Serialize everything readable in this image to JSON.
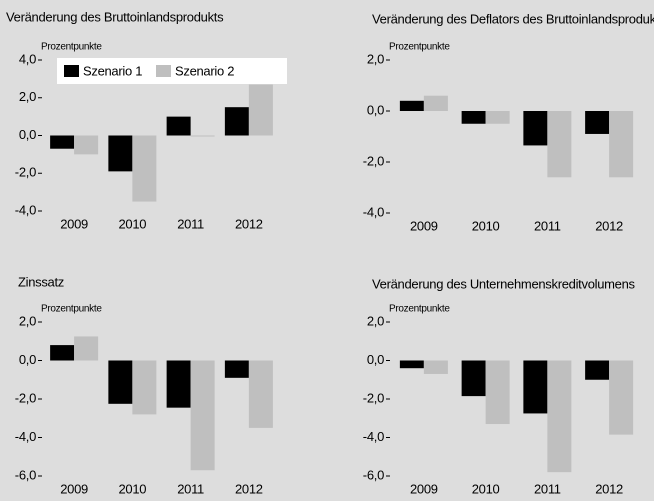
{
  "chart_data": [
    {
      "type": "bar",
      "title": "Veränderung des Bruttoinlandsprodukts",
      "ylabel": "Prozentpunkte",
      "categories": [
        "2009",
        "2010",
        "2011",
        "2012"
      ],
      "series": [
        {
          "name": "Szenario 1",
          "color": "#000000",
          "values": [
            -0.7,
            -1.9,
            1.0,
            1.5
          ]
        },
        {
          "name": "Szenario 2",
          "color": "#bfbfbf",
          "values": [
            -1.0,
            -3.5,
            0.0,
            2.7
          ]
        }
      ],
      "ylim": [
        -4,
        4
      ],
      "yticks": [
        {
          "value": -4,
          "label": "-4,0"
        },
        {
          "value": -2,
          "label": "-2,0"
        },
        {
          "value": 0,
          "label": "0,0"
        },
        {
          "value": 2,
          "label": "2,0"
        },
        {
          "value": 4,
          "label": "4,0"
        }
      ],
      "legend": "top"
    },
    {
      "type": "bar",
      "title": "Veränderung des Deflators des Bruttoinlandsprodukts",
      "ylabel": "Prozentpunkte",
      "categories": [
        "2009",
        "2010",
        "2011",
        "2012"
      ],
      "series": [
        {
          "color": "#000000",
          "values": [
            0.4,
            -0.5,
            -1.35,
            -0.9
          ]
        },
        {
          "color": "#bfbfbf",
          "values": [
            0.6,
            -0.5,
            -2.6,
            -2.6
          ]
        }
      ],
      "ylim": [
        -4,
        2
      ],
      "yticks": [
        {
          "value": -4,
          "label": "-4,0"
        },
        {
          "value": -2,
          "label": "-2,0"
        },
        {
          "value": 0,
          "label": "0,0"
        },
        {
          "value": 2,
          "label": "2,0"
        }
      ]
    },
    {
      "type": "bar",
      "title": "Zinssatz",
      "ylabel": "Prozentpunkte",
      "categories": [
        "2009",
        "2010",
        "2011",
        "2012"
      ],
      "series": [
        {
          "color": "#000000",
          "values": [
            0.8,
            -2.25,
            -2.45,
            -0.9
          ]
        },
        {
          "color": "#bfbfbf",
          "values": [
            1.25,
            -2.8,
            -5.7,
            -3.5
          ]
        }
      ],
      "ylim": [
        -6,
        2
      ],
      "yticks": [
        {
          "value": -6,
          "label": "-6,0"
        },
        {
          "value": -4,
          "label": "-4,0"
        },
        {
          "value": -2,
          "label": "-2,0"
        },
        {
          "value": 0,
          "label": "0,0"
        },
        {
          "value": 2,
          "label": "2,0"
        }
      ]
    },
    {
      "type": "bar",
      "title": "Veränderung des Unternehmenskreditvolumens",
      "ylabel": "Prozentpunkte",
      "categories": [
        "2009",
        "2010",
        "2011",
        "2012"
      ],
      "series": [
        {
          "color": "#000000",
          "values": [
            -0.4,
            -1.85,
            -2.75,
            -1.0
          ]
        },
        {
          "color": "#bfbfbf",
          "values": [
            -0.7,
            -3.3,
            -5.8,
            -3.85
          ]
        }
      ],
      "ylim": [
        -6,
        2
      ],
      "yticks": [
        {
          "value": -6,
          "label": "-6,0"
        },
        {
          "value": -4,
          "label": "-4,0"
        },
        {
          "value": -2,
          "label": "-2,0"
        },
        {
          "value": 0,
          "label": "0,0"
        },
        {
          "value": 2,
          "label": "2,0"
        }
      ]
    }
  ]
}
